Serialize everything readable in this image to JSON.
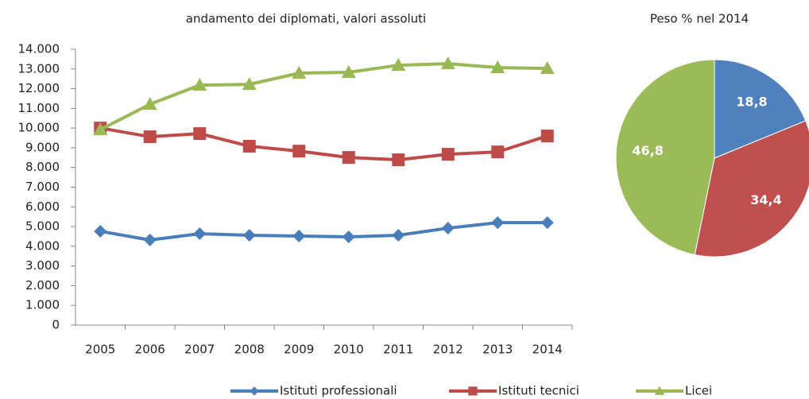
{
  "chart_data": [
    {
      "type": "line",
      "title": "andamento dei diplomati,  valori assoluti",
      "categories": [
        "2005",
        "2006",
        "2007",
        "2008",
        "2009",
        "2010",
        "2011",
        "2012",
        "2013",
        "2014"
      ],
      "series": [
        {
          "name": "Istituti professionali",
          "color": "#4a7ebb",
          "marker": "diamond",
          "values": [
            4760,
            4320,
            4640,
            4560,
            4520,
            4480,
            4560,
            4920,
            5200,
            5200
          ]
        },
        {
          "name": "Istituti tecnici",
          "color": "#be4b48",
          "marker": "square",
          "values": [
            10000,
            9560,
            9720,
            9080,
            8830,
            8510,
            8390,
            8670,
            8790,
            9600
          ]
        },
        {
          "name": "Licei",
          "color": "#98b954",
          "marker": "triangle",
          "values": [
            9920,
            11210,
            12180,
            12220,
            12790,
            12830,
            13190,
            13270,
            13070,
            13030
          ]
        }
      ],
      "ylim": [
        0,
        14000
      ],
      "yticks": [
        0,
        {
          "value": 1000,
          "label": "1.000"
        },
        {
          "value": 2000,
          "label": "2.000"
        },
        {
          "value": 3000,
          "label": "3.000"
        },
        {
          "value": 4000,
          "label": "4.000"
        },
        {
          "value": 5000,
          "label": "5.000"
        },
        {
          "value": 6000,
          "label": "6.000"
        },
        {
          "value": 7000,
          "label": "7.000"
        },
        {
          "value": 8000,
          "label": "8.000"
        },
        {
          "value": 9000,
          "label": "9.000"
        },
        {
          "value": 10000,
          "label": "10.000"
        },
        {
          "value": 11000,
          "label": "11.000"
        },
        {
          "value": 12000,
          "label": "12.000"
        },
        {
          "value": 13000,
          "label": "13.000"
        },
        {
          "value": 14000,
          "label": "14.000"
        }
      ],
      "legend": "bottom"
    },
    {
      "type": "pie",
      "title": "Peso % nel 2014",
      "values": [
        18.8,
        34.4,
        46.8
      ],
      "value_labels": [
        "18,8",
        "34,4",
        "46,8"
      ],
      "colors": [
        "#4f81bd",
        "#c0504d",
        "#9bbb59"
      ]
    }
  ]
}
